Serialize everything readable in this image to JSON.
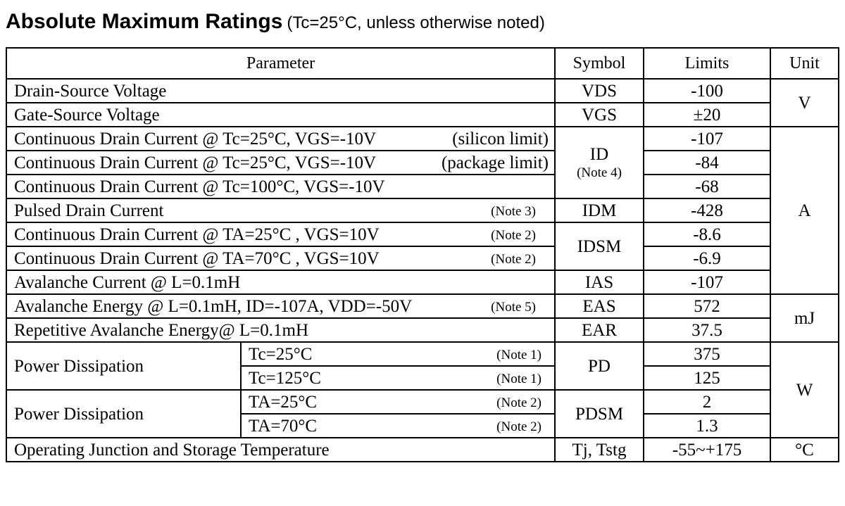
{
  "title": {
    "main": "Absolute Maximum Ratings",
    "sub": "(Tc=25°C, unless otherwise noted)"
  },
  "headers": {
    "parameter": "Parameter",
    "symbol": "Symbol",
    "limits": "Limits",
    "unit": "Unit"
  },
  "rows": [
    {
      "parameter": "Drain-Source Voltage",
      "limit": "-100"
    },
    {
      "parameter": "Gate-Source Voltage",
      "limit": "±20"
    },
    {
      "parameter": "Continuous Drain Current @ Tc=25°C, VGS=-10V",
      "qualifier": "(silicon limit)",
      "limit": "-107"
    },
    {
      "parameter": "Continuous Drain Current @ Tc=25°C, VGS=-10V",
      "qualifier": "(package limit)",
      "limit": "-84"
    },
    {
      "parameter": "Continuous Drain Current @ Tc=100°C, VGS=-10V",
      "limit": "-68"
    },
    {
      "parameter": "Pulsed Drain Current",
      "note": "(Note 3)",
      "limit": "-428"
    },
    {
      "parameter": "Continuous Drain Current @ TA=25°C , VGS=10V",
      "note": "(Note 2)",
      "limit": "-8.6"
    },
    {
      "parameter": "Continuous Drain Current @ TA=70°C , VGS=10V",
      "note": "(Note 2)",
      "limit": "-6.9"
    },
    {
      "parameter": "Avalanche Current @ L=0.1mH",
      "limit": "-107"
    },
    {
      "parameter": "Avalanche Energy @ L=0.1mH, ID=-107A, VDD=-50V",
      "note": "(Note 5)",
      "limit": "572"
    },
    {
      "parameter": "Repetitive Avalanche Energy@ L=0.1mH",
      "limit": "37.5"
    },
    {
      "parameter": "Power Dissipation",
      "condition": "Tc=25°C",
      "note": "(Note 1)",
      "limit": "375"
    },
    {
      "condition": "Tc=125°C",
      "note": "(Note 1)",
      "limit": "125"
    },
    {
      "parameter": "Power Dissipation",
      "condition": "TA=25°C",
      "note": "(Note 2)",
      "limit": "2"
    },
    {
      "condition": "TA=70°C",
      "note": "(Note 2)",
      "limit": "1.3"
    },
    {
      "parameter": "Operating Junction and Storage Temperature",
      "limit": "-55~+175"
    }
  ],
  "symbols": {
    "vds": "VDS",
    "vgs": "VGS",
    "id": "ID",
    "id_note": "(Note 4)",
    "idm": "IDM",
    "idsm": "IDSM",
    "ias": "IAS",
    "eas": "EAS",
    "ear": "EAR",
    "pd": "PD",
    "pdsm": "PDSM",
    "tj": "Tj, Tstg"
  },
  "units": {
    "volt": "V",
    "amp": "A",
    "mj": "mJ",
    "watt": "W",
    "celsius": "°C"
  }
}
